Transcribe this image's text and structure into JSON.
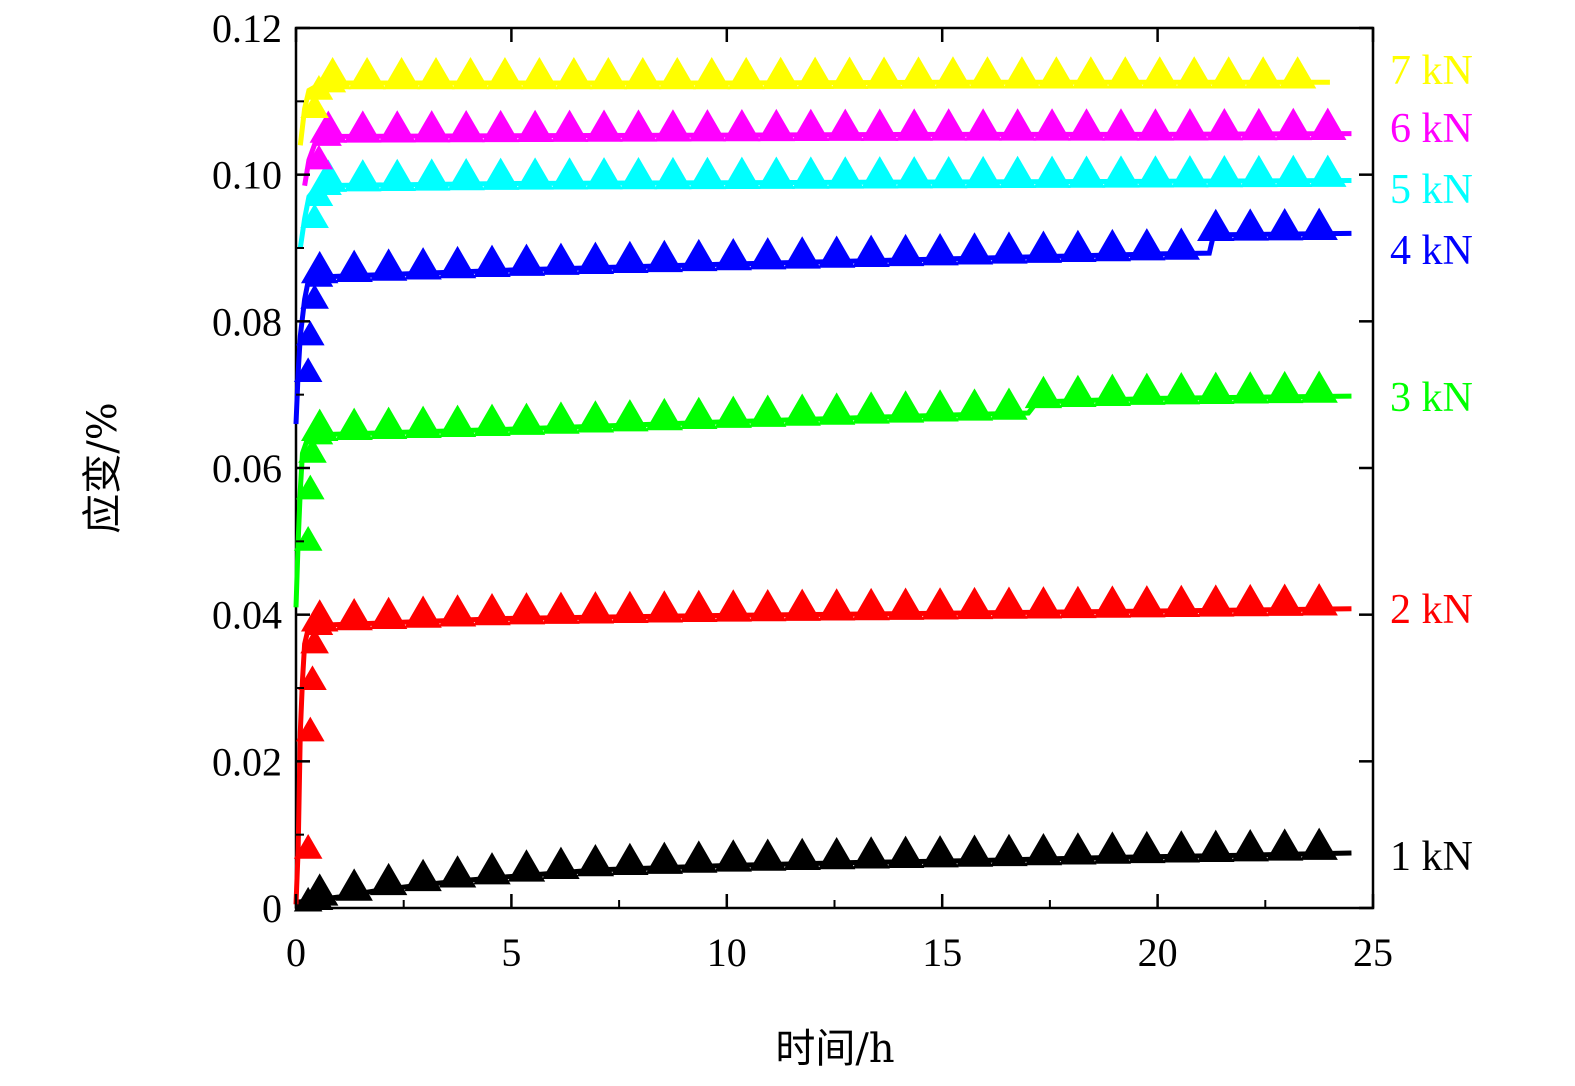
{
  "chart_data": {
    "type": "scatter",
    "title": "",
    "xlabel": "时间/h",
    "ylabel": "应变/%",
    "xlim": [
      0,
      25
    ],
    "ylim": [
      0,
      0.12
    ],
    "xticks": [
      {
        "value": 0,
        "label": "0"
      },
      {
        "value": 5,
        "label": "5"
      },
      {
        "value": 10,
        "label": "10"
      },
      {
        "value": 15,
        "label": "15"
      },
      {
        "value": 20,
        "label": "20"
      },
      {
        "value": 25,
        "label": "25"
      }
    ],
    "yticks": [
      {
        "value": 0,
        "label": "0"
      },
      {
        "value": 0.02,
        "label": "0.02"
      },
      {
        "value": 0.04,
        "label": "0.04"
      },
      {
        "value": 0.06,
        "label": "0.06"
      },
      {
        "value": 0.08,
        "label": "0.08"
      },
      {
        "value": 0.1,
        "label": "0.10"
      },
      {
        "value": 0.12,
        "label": "0.12"
      }
    ],
    "series": [
      {
        "name": "1 kN",
        "color": "#000000",
        "marker": "triangle",
        "loading": [
          [
            0.0,
            0.0005
          ],
          [
            0.05,
            0.0008
          ],
          [
            0.3,
            0.001
          ]
        ],
        "creep": [
          [
            0.3,
            0.001
          ],
          [
            1.0,
            0.0015
          ],
          [
            2.0,
            0.0025
          ],
          [
            3.0,
            0.0032
          ],
          [
            4.0,
            0.0038
          ],
          [
            5.0,
            0.0043
          ],
          [
            7.0,
            0.0052
          ],
          [
            10.0,
            0.0058
          ],
          [
            13.0,
            0.0062
          ],
          [
            16.0,
            0.0065
          ],
          [
            19.0,
            0.0069
          ],
          [
            22.0,
            0.0072
          ],
          [
            24.5,
            0.0075
          ]
        ]
      },
      {
        "name": "2 kN",
        "color": "#ff0000",
        "marker": "triangle",
        "loading": [
          [
            0.0,
            0.0005
          ],
          [
            0.05,
            0.008
          ],
          [
            0.1,
            0.024
          ],
          [
            0.15,
            0.031
          ],
          [
            0.2,
            0.036
          ],
          [
            0.3,
            0.0385
          ]
        ],
        "creep": [
          [
            0.3,
            0.0385
          ],
          [
            5.0,
            0.0395
          ],
          [
            10.0,
            0.0399
          ],
          [
            15.0,
            0.0402
          ],
          [
            20.0,
            0.0405
          ],
          [
            24.5,
            0.0408
          ]
        ]
      },
      {
        "name": "3 kN",
        "color": "#00ff00",
        "marker": "triangle",
        "loading": [
          [
            0.0,
            0.041
          ],
          [
            0.05,
            0.05
          ],
          [
            0.1,
            0.057
          ],
          [
            0.15,
            0.062
          ],
          [
            0.3,
            0.0645
          ]
        ],
        "creep": [
          [
            0.3,
            0.0645
          ],
          [
            5.0,
            0.0653
          ],
          [
            10.0,
            0.0663
          ],
          [
            15.0,
            0.0672
          ],
          [
            17.0,
            0.0675
          ],
          [
            17.2,
            0.069
          ],
          [
            20.0,
            0.0695
          ],
          [
            24.5,
            0.0698
          ]
        ]
      },
      {
        "name": "4 kN",
        "color": "#0000ff",
        "marker": "triangle",
        "loading": [
          [
            0.0,
            0.066
          ],
          [
            0.05,
            0.073
          ],
          [
            0.1,
            0.078
          ],
          [
            0.2,
            0.083
          ],
          [
            0.3,
            0.086
          ]
        ],
        "creep": [
          [
            0.3,
            0.086
          ],
          [
            5.0,
            0.087
          ],
          [
            10.0,
            0.0878
          ],
          [
            15.0,
            0.0885
          ],
          [
            20.0,
            0.0892
          ],
          [
            21.2,
            0.0893
          ],
          [
            21.3,
            0.0918
          ],
          [
            24.5,
            0.092
          ]
        ]
      },
      {
        "name": "5 kN",
        "color": "#00ffff",
        "marker": "triangle",
        "loading": [
          [
            0.1,
            0.09
          ],
          [
            0.2,
            0.094
          ],
          [
            0.3,
            0.097
          ],
          [
            0.5,
            0.0985
          ]
        ],
        "creep": [
          [
            0.5,
            0.0985
          ],
          [
            5.0,
            0.0988
          ],
          [
            10.0,
            0.0989
          ],
          [
            15.0,
            0.099
          ],
          [
            20.0,
            0.0991
          ],
          [
            24.5,
            0.0992
          ]
        ]
      },
      {
        "name": "6 kN",
        "color": "#ff00ff",
        "marker": "triangle",
        "loading": [
          [
            0.2,
            0.0985
          ],
          [
            0.3,
            0.102
          ],
          [
            0.5,
            0.1052
          ]
        ],
        "creep": [
          [
            0.5,
            0.1052
          ],
          [
            5.0,
            0.1053
          ],
          [
            10.0,
            0.1054
          ],
          [
            15.0,
            0.1055
          ],
          [
            20.0,
            0.1055
          ],
          [
            24.5,
            0.1056
          ]
        ]
      },
      {
        "name": "7 kN",
        "color": "#ffff00",
        "marker": "triangle",
        "loading": [
          [
            0.1,
            0.104
          ],
          [
            0.2,
            0.109
          ],
          [
            0.3,
            0.1115
          ],
          [
            0.6,
            0.1125
          ]
        ],
        "creep": [
          [
            0.6,
            0.1125
          ],
          [
            5.0,
            0.1125
          ],
          [
            10.0,
            0.1125
          ],
          [
            15.0,
            0.1126
          ],
          [
            20.0,
            0.1126
          ],
          [
            24.0,
            0.1126
          ]
        ]
      }
    ]
  }
}
